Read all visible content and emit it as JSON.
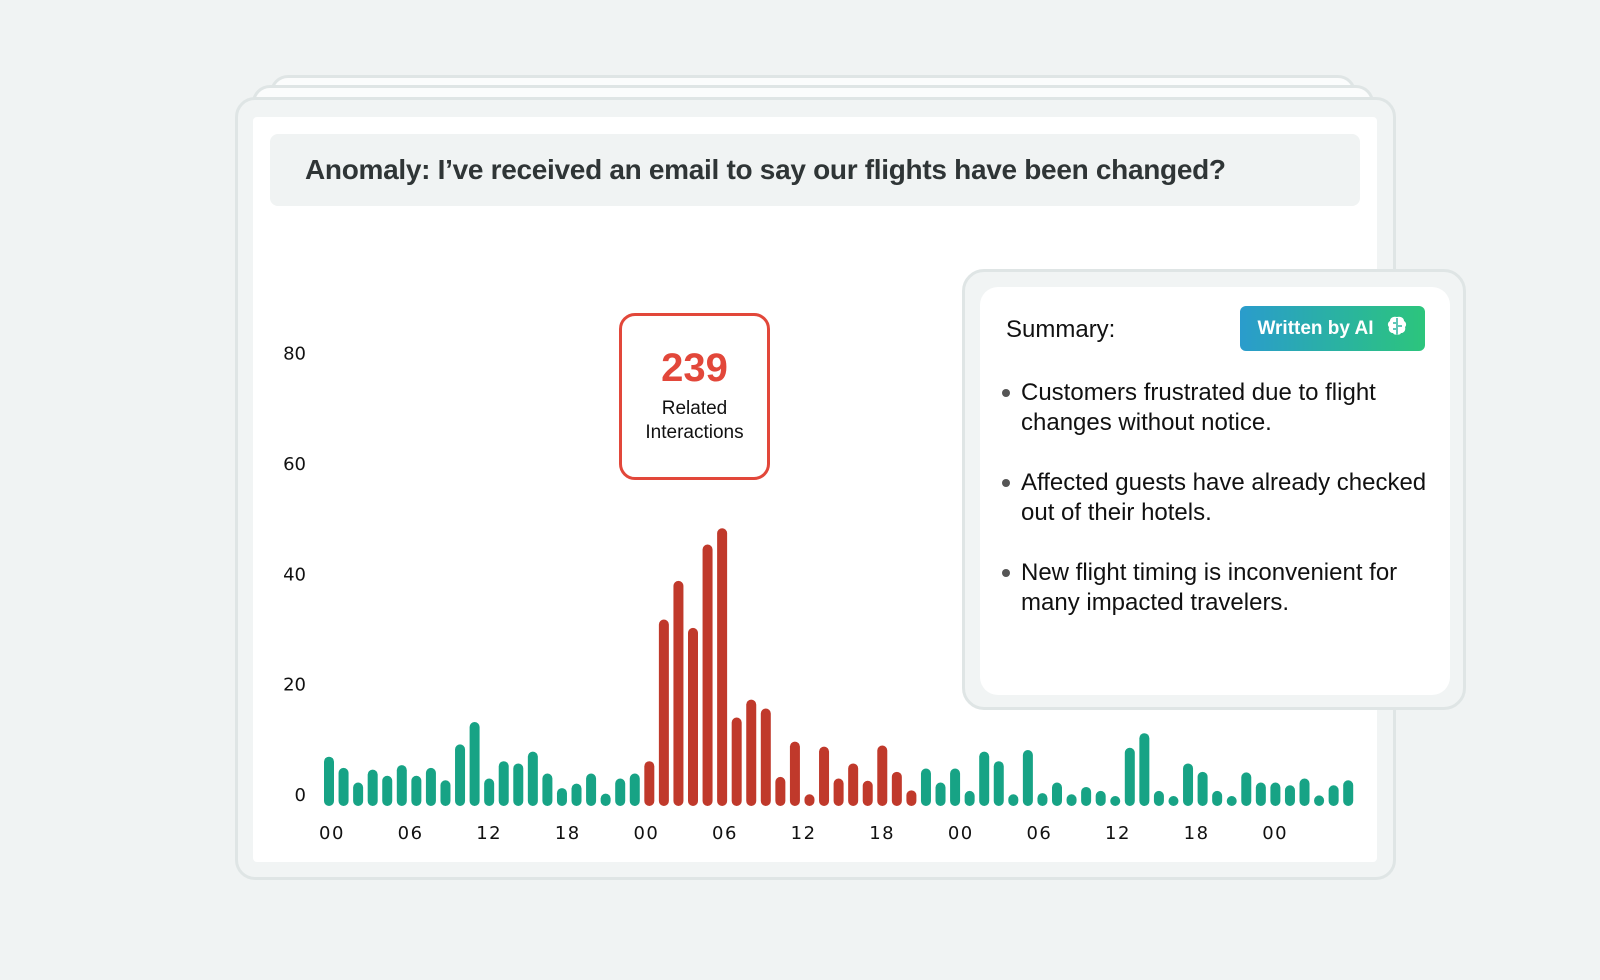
{
  "header": {
    "title": "Anomaly: I’ve received an email to say our flights have been changed?"
  },
  "callout": {
    "count": "239",
    "label_line1": "Related",
    "label_line2": "Interactions",
    "color": "#e2473a"
  },
  "summary": {
    "title": "Summary:",
    "badge": "Written by AI",
    "badge_icon": "brain-icon",
    "bullets": [
      "Customers frustrated due to flight changes without notice.",
      "Affected guests have already checked out of their hotels.",
      "New flight timing is inconvenient for many impacted travelers."
    ]
  },
  "chart_data": {
    "type": "bar",
    "title": "",
    "xlabel": "",
    "ylabel": "",
    "ylim": [
      0,
      80
    ],
    "yticks": [
      "0",
      "20",
      "40",
      "60",
      "80"
    ],
    "xticks": [
      "00",
      "06",
      "12",
      "18",
      "00",
      "06",
      "12",
      "18",
      "00",
      "06",
      "12",
      "18",
      "00"
    ],
    "normal_color": "#17a385",
    "anomaly_color": "#c0392b",
    "values": [
      8.8,
      6.8,
      4.2,
      6.5,
      5.4,
      7.3,
      5.4,
      6.8,
      4.6,
      11,
      15,
      4.9,
      8,
      7.6,
      9.7,
      5.8,
      3.2,
      4,
      5.8,
      2.2,
      4.9,
      5.8,
      8,
      33.3,
      40.2,
      31.8,
      46.7,
      49.6,
      15.8,
      19,
      17.4,
      5.2,
      11.5,
      2.1,
      10.6,
      4.9,
      7.6,
      4.5,
      10.8,
      6.1,
      2.8,
      6.7,
      4.2,
      6.7,
      2.7,
      9.7,
      8,
      2.1,
      10,
      2.3,
      4.2,
      2.1,
      3.4,
      2.7,
      1.7,
      10.4,
      13,
      2.7,
      1.1,
      7.6,
      6.1,
      2.7,
      1.7,
      6,
      4.2,
      4.2,
      3.7,
      4.9,
      1.9,
      3.7,
      4.6
    ],
    "anomaly_range": [
      22,
      40
    ]
  }
}
